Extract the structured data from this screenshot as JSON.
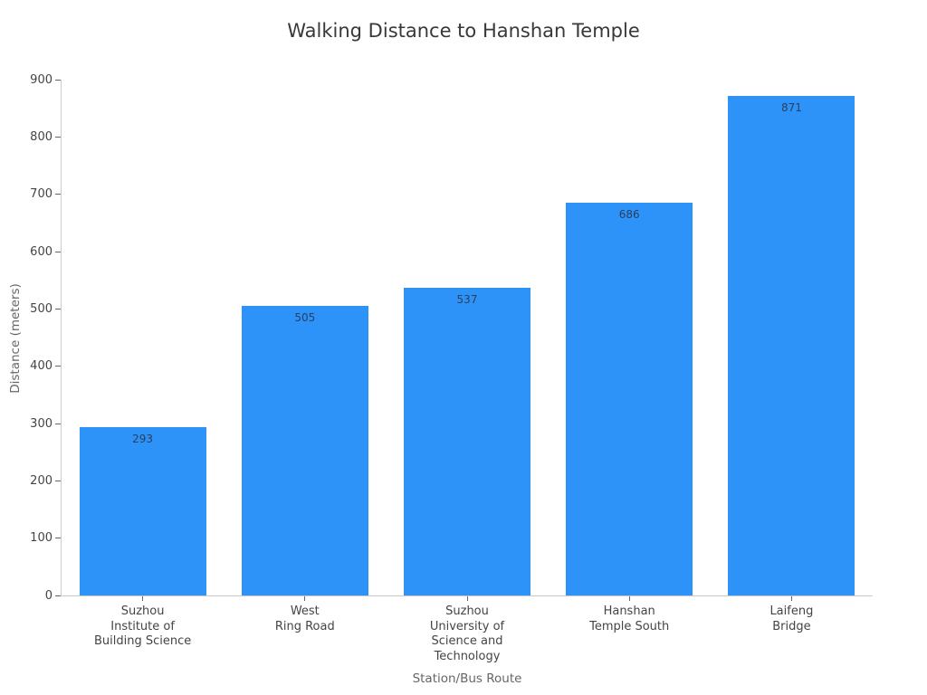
{
  "chart_data": {
    "type": "bar",
    "title": "Walking Distance to Hanshan Temple",
    "xlabel": "Station/Bus Route",
    "ylabel": "Distance (meters)",
    "categories": [
      "Suzhou\nInstitute of\nBuilding Science",
      "West\nRing Road",
      "Suzhou\nUniversity of\nScience and\nTechnology",
      "Hanshan\nTemple South",
      "Laifeng\nBridge"
    ],
    "values": [
      293,
      505,
      537,
      686,
      871
    ],
    "bar_labels": [
      "293",
      "505",
      "537",
      "686",
      "871"
    ],
    "ylim": [
      0,
      900
    ],
    "yticks": [
      0,
      100,
      200,
      300,
      400,
      500,
      600,
      700,
      800,
      900
    ],
    "grid": false,
    "legend_position": "none",
    "bar_color": "#2e93f8",
    "value_label_color": "#2a3f5f",
    "tick_label_color": "#444444",
    "axis_title_color": "#666666",
    "title_color": "#383838"
  }
}
